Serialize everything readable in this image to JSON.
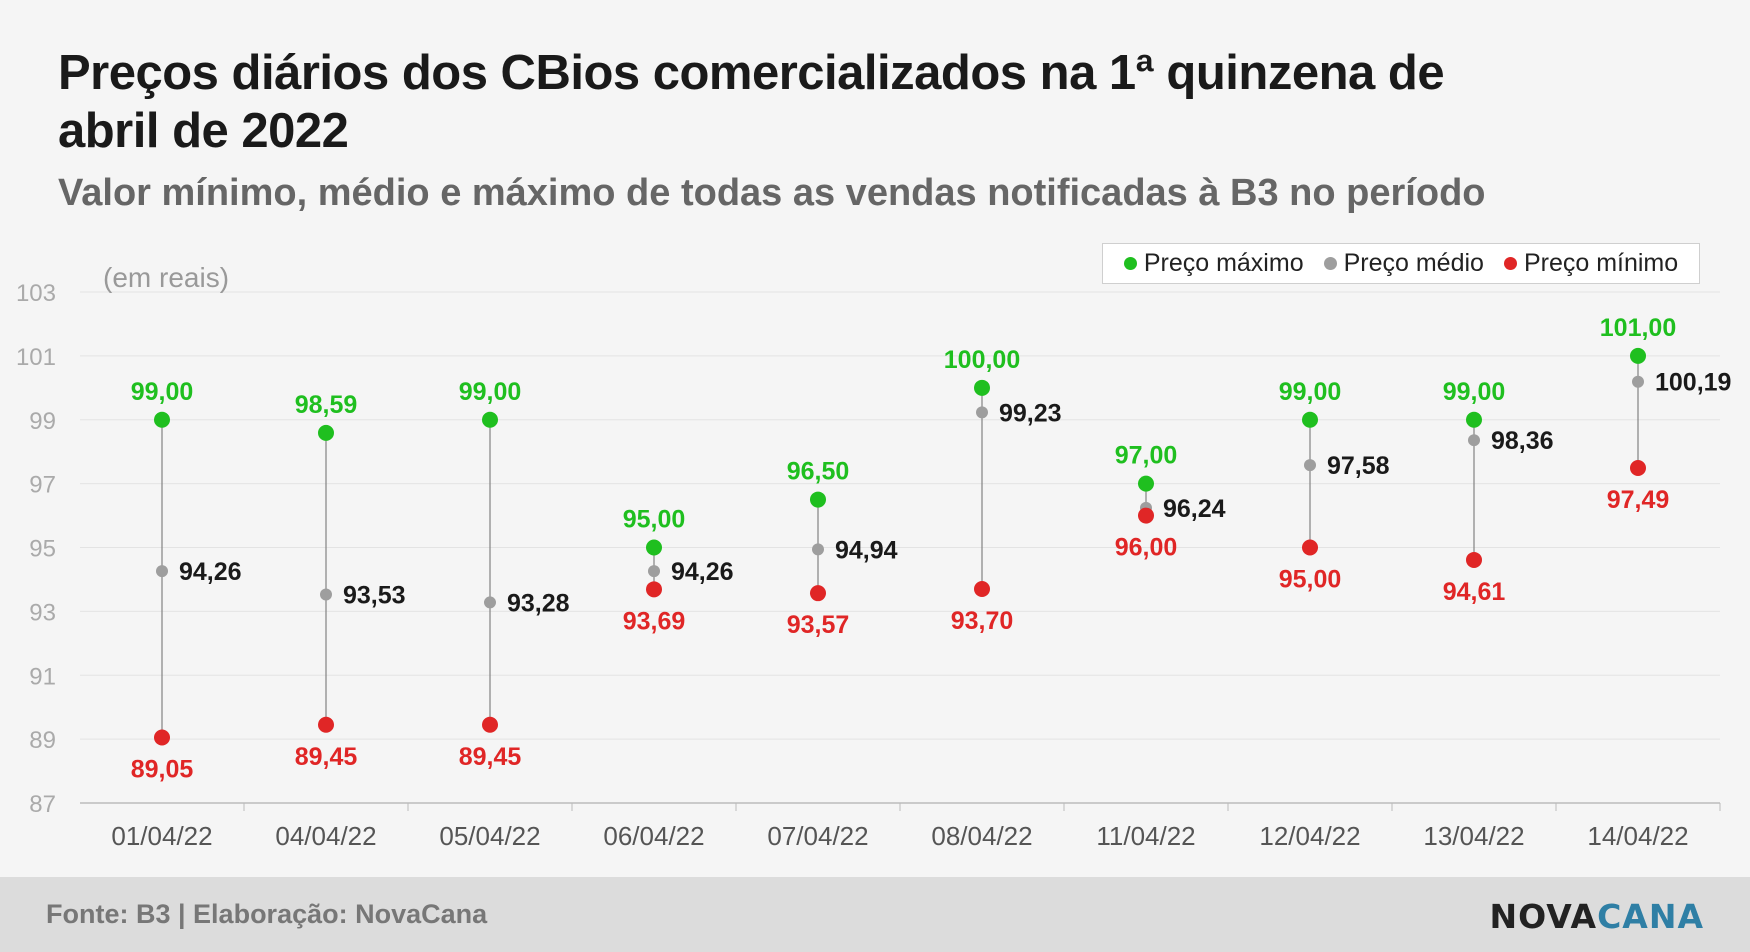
{
  "title": "Preços diários dos CBios comercializados na 1ª quinzena de abril de 2022",
  "subtitle": "Valor mínimo, médio e máximo de todas as vendas notificadas à B3 no período",
  "footer": {
    "source": "Fonte: B3 | Elaboração: NovaCana",
    "logo_nova": "NOVA",
    "logo_cana": "CANA"
  },
  "colors": {
    "max": "#1fbf1f",
    "avg": "#9e9e9e",
    "min": "#e02626",
    "grid": "#e3e3e3",
    "axis_text": "#999"
  },
  "chart_data": {
    "type": "scatter",
    "unit_label": "(em reais)",
    "ylim": [
      87,
      103
    ],
    "yticks": [
      "87",
      "89",
      "91",
      "93",
      "95",
      "97",
      "99",
      "101",
      "103"
    ],
    "categories": [
      "01/04/22",
      "04/04/22",
      "05/04/22",
      "06/04/22",
      "07/04/22",
      "08/04/22",
      "11/04/22",
      "12/04/22",
      "13/04/22",
      "14/04/22"
    ],
    "series": [
      {
        "name": "Preço máximo",
        "key": "max",
        "values": [
          99.0,
          98.59,
          99.0,
          95.0,
          96.5,
          100.0,
          97.0,
          99.0,
          99.0,
          101.0
        ],
        "labels": [
          "99,00",
          "98,59",
          "99,00",
          "95,00",
          "96,50",
          "100,00",
          "97,00",
          "99,00",
          "99,00",
          "101,00"
        ]
      },
      {
        "name": "Preço médio",
        "key": "avg",
        "values": [
          94.26,
          93.53,
          93.28,
          94.26,
          94.94,
          99.23,
          96.24,
          97.58,
          98.36,
          100.19
        ],
        "labels": [
          "94,26",
          "93,53",
          "93,28",
          "94,26",
          "94,94",
          "99,23",
          "96,24",
          "97,58",
          "98,36",
          "100,19"
        ]
      },
      {
        "name": "Preço mínimo",
        "key": "min",
        "values": [
          89.05,
          89.45,
          89.45,
          93.69,
          93.57,
          93.7,
          96.0,
          95.0,
          94.61,
          97.49
        ],
        "labels": [
          "89,05",
          "89,45",
          "89,45",
          "93,69",
          "93,57",
          "93,70",
          "96,00",
          "95,00",
          "94,61",
          "97,49"
        ]
      }
    ],
    "legend": {
      "position": "top-right",
      "items": [
        "Preço máximo",
        "Preço médio",
        "Preço mínimo"
      ]
    },
    "grid": true
  }
}
